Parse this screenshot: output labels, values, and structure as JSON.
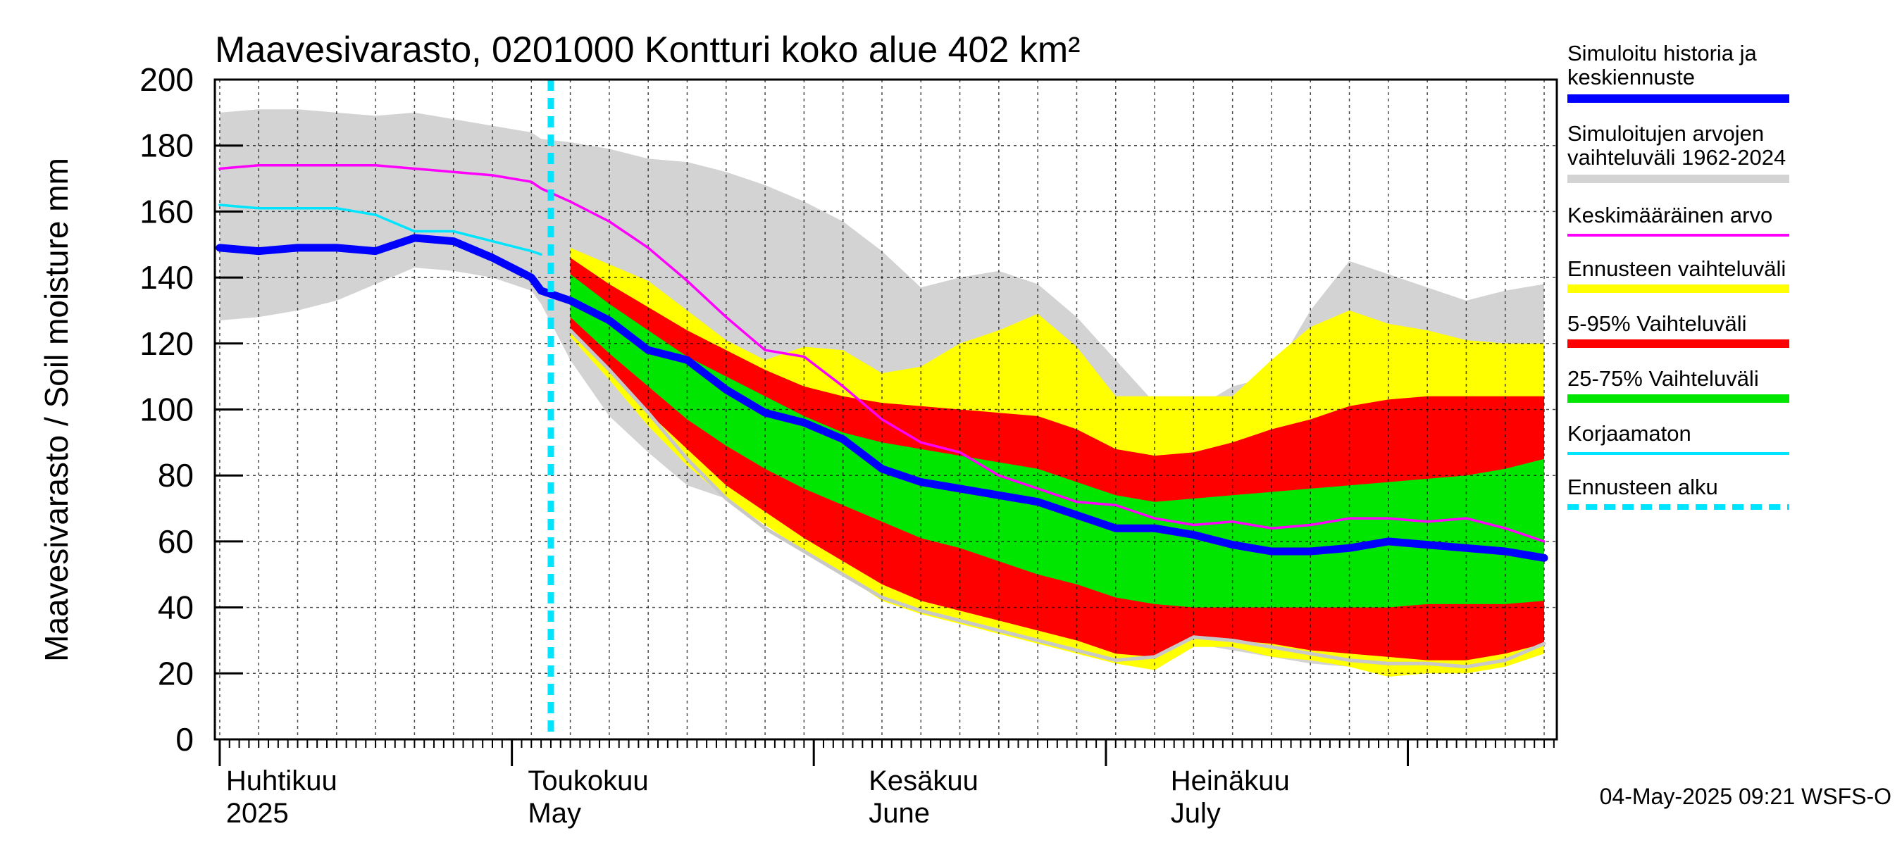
{
  "chart_data": {
    "type": "area",
    "title": "Maavesivarasto, 0201000 Kontturi koko alue 402 km²",
    "ylabel": "Maavesivarasto / Soil moisture   mm",
    "ylim": [
      0,
      200
    ],
    "xlim": [
      -0.5,
      137.3
    ],
    "y_ticks": [
      0,
      20,
      40,
      60,
      80,
      100,
      120,
      140,
      160,
      180,
      200
    ],
    "month_labels": [
      {
        "day": 0.5,
        "fi": "Huhtikuu",
        "en": "2025"
      },
      {
        "day": 31.5,
        "fi": "Toukokuu",
        "en": "May"
      },
      {
        "day": 66.5,
        "fi": "Kesäkuu",
        "en": "June"
      },
      {
        "day": 97.5,
        "fi": "Heinäkuu",
        "en": "July"
      }
    ],
    "month_boundaries": [
      0,
      30,
      61,
      91,
      122
    ],
    "forecast_start_day": 34,
    "x": [
      0,
      4,
      8,
      12,
      16,
      20,
      24,
      28,
      32,
      33,
      36,
      40,
      44,
      48,
      52,
      56,
      60,
      64,
      68,
      72,
      76,
      80,
      84,
      88,
      92,
      96,
      100,
      104,
      108,
      112,
      116,
      120,
      124,
      128,
      132,
      136
    ],
    "series": [
      {
        "name": "Simuloitujen arvojen vaihteluväli 1962-2024 (max)",
        "values": [
          190,
          191,
          191,
          190,
          189,
          190,
          188,
          186,
          184,
          182,
          181,
          179,
          176,
          175,
          172,
          168,
          163,
          157,
          148,
          137,
          140,
          142,
          138,
          128,
          115,
          102,
          100,
          107,
          110,
          130,
          145,
          141,
          137,
          133,
          136,
          138
        ]
      },
      {
        "name": "Simuloitujen arvojen vaihteluväli 1962-2024 (min)",
        "values": [
          127,
          128,
          130,
          133,
          138,
          143,
          142,
          140,
          136,
          132,
          115,
          98,
          87,
          77,
          73,
          67,
          59,
          52,
          45,
          40,
          37,
          34,
          32,
          28,
          24,
          23,
          29,
          27,
          25,
          23,
          22,
          20,
          21,
          21,
          24,
          28
        ]
      },
      {
        "name": "Ennusteen vaihteluväli (max)",
        "values": [
          null,
          null,
          null,
          null,
          null,
          null,
          null,
          null,
          null,
          null,
          149,
          144,
          139,
          130,
          121,
          115,
          119,
          118,
          111,
          113,
          120,
          124,
          129,
          119,
          104,
          104,
          104,
          104,
          115,
          125,
          130,
          126,
          124,
          121,
          120,
          120
        ]
      },
      {
        "name": "Ennusteen vaihteluväli (min)",
        "values": [
          null,
          null,
          null,
          null,
          null,
          null,
          null,
          null,
          null,
          null,
          122,
          109,
          95,
          83,
          73,
          65,
          57,
          50,
          42,
          38,
          35,
          32,
          29,
          26,
          23,
          21,
          28,
          28,
          25,
          24,
          22,
          19,
          20,
          20,
          22,
          26
        ]
      },
      {
        "name": "5-95% Vaihteluväli (max)",
        "values": [
          null,
          null,
          null,
          null,
          null,
          null,
          null,
          null,
          null,
          null,
          146,
          138,
          131,
          124,
          118,
          112,
          107,
          104,
          102,
          101,
          100,
          99,
          98,
          94,
          88,
          86,
          87,
          90,
          94,
          97,
          101,
          103,
          104,
          104,
          104,
          104
        ]
      },
      {
        "name": "5-95% Vaihteluväli (min)",
        "values": [
          null,
          null,
          null,
          null,
          null,
          null,
          null,
          null,
          null,
          null,
          124,
          112,
          99,
          88,
          77,
          69,
          61,
          54,
          47,
          42,
          39,
          36,
          33,
          30,
          26,
          25,
          31,
          30,
          29,
          27,
          26,
          25,
          24,
          24,
          26,
          29
        ]
      },
      {
        "name": "25-75% Vaihteluväli (max)",
        "values": [
          null,
          null,
          null,
          null,
          null,
          null,
          null,
          null,
          null,
          null,
          141,
          132,
          124,
          116,
          110,
          104,
          98,
          93,
          90,
          88,
          86,
          84,
          82,
          78,
          74,
          72,
          73,
          74,
          75,
          76,
          77,
          78,
          79,
          80,
          82,
          85
        ]
      },
      {
        "name": "25-75% Vaihteluväli (min)",
        "values": [
          null,
          null,
          null,
          null,
          null,
          null,
          null,
          null,
          null,
          null,
          128,
          117,
          107,
          97,
          89,
          82,
          76,
          71,
          66,
          61,
          58,
          54,
          50,
          47,
          43,
          41,
          40,
          40,
          40,
          40,
          40,
          40,
          41,
          41,
          41,
          42
        ]
      },
      {
        "name": "Keskimääräinen arvo",
        "values": [
          173,
          174,
          174,
          174,
          174,
          173,
          172,
          171,
          169,
          167,
          163,
          157,
          149,
          139,
          128,
          118,
          116,
          107,
          97,
          90,
          87,
          80,
          76,
          72,
          71,
          67,
          65,
          66,
          64,
          65,
          67,
          67,
          66,
          67,
          64,
          60
        ]
      },
      {
        "name": "Simuloitu historia ja keskiennuste",
        "values": [
          149,
          148,
          149,
          149,
          148,
          152,
          151,
          146,
          140,
          136,
          133,
          127,
          118,
          115,
          106,
          99,
          96,
          91,
          82,
          78,
          76,
          74,
          72,
          68,
          64,
          64,
          62,
          59,
          57,
          57,
          58,
          60,
          59,
          58,
          57,
          55
        ]
      },
      {
        "name": "Korjaamaton",
        "values": [
          162,
          161,
          161,
          161,
          159,
          154,
          154,
          151,
          148,
          147,
          null,
          null,
          null,
          null,
          null,
          null,
          null,
          null,
          null,
          null,
          null,
          null,
          null,
          null,
          null,
          null,
          null,
          null,
          null,
          null,
          null,
          null,
          null,
          null,
          null,
          null
        ]
      },
      {
        "name": "Ennusteen alaraja (grey)",
        "values": [
          null,
          null,
          null,
          null,
          null,
          null,
          null,
          null,
          null,
          null,
          124,
          112,
          99,
          85,
          73,
          64,
          57,
          50,
          43,
          39,
          36,
          33,
          30,
          27,
          24,
          25,
          31,
          30,
          28,
          26,
          24,
          23,
          23,
          22,
          24,
          29
        ]
      }
    ],
    "colors": {
      "history_range": "#d3d3d3",
      "forecast_range": "#ffff00",
      "p5_95": "#ff0000",
      "p25_75": "#00e600",
      "mean": "#ff00ff",
      "median": "#0000ff",
      "uncorrected": "#00e5ff",
      "forecast_start": "#00e5ff",
      "lower_bound": "#c8c8c8"
    }
  },
  "legend": [
    {
      "line1": "Simuloitu historia ja",
      "line2": "keskiennuste",
      "color": "#0000ff",
      "style": "thick"
    },
    {
      "line1": "Simuloitujen arvojen",
      "line2": "vaihteluväli 1962-2024",
      "color": "#d3d3d3",
      "style": "thick"
    },
    {
      "line1": "Keskimääräinen arvo",
      "line2": "",
      "color": "#ff00ff",
      "style": "thin"
    },
    {
      "line1": "Ennusteen vaihteluväli",
      "line2": "",
      "color": "#ffff00",
      "style": "thick"
    },
    {
      "line1": "5-95% Vaihteluväli",
      "line2": "",
      "color": "#ff0000",
      "style": "thick"
    },
    {
      "line1": "25-75% Vaihteluväli",
      "line2": "",
      "color": "#00e600",
      "style": "thick"
    },
    {
      "line1": "Korjaamaton",
      "line2": "",
      "color": "#00e5ff",
      "style": "thin"
    },
    {
      "line1": "Ennusteen alku",
      "line2": "",
      "color": "#00e5ff",
      "style": "dashed"
    }
  ],
  "footer": "04-May-2025 09:21 WSFS-O"
}
